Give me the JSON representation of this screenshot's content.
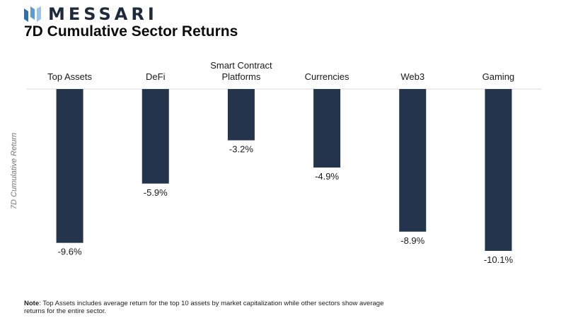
{
  "brand": {
    "name": "MESSARI",
    "color": "#1f2a3c"
  },
  "title": "7D Cumulative Sector Returns",
  "note": {
    "prefix": "Note",
    "text": ": Top Assets includes average return for the top 10 assets by market capitalization while other sectors show average returns for the entire sector."
  },
  "chart_data": {
    "type": "bar",
    "title": "7D Cumulative Sector Returns",
    "ylabel": "7D Cumulative Return",
    "xlabel": "",
    "categories": [
      "Top Assets",
      "DeFi",
      "Smart Contract Platforms",
      "Currencies",
      "Web3",
      "Gaming"
    ],
    "category_lines": [
      [
        "Top Assets"
      ],
      [
        "DeFi"
      ],
      [
        "Smart Contract",
        "Platforms"
      ],
      [
        "Currencies"
      ],
      [
        "Web3"
      ],
      [
        "Gaming"
      ]
    ],
    "values": [
      -9.6,
      -5.9,
      -3.2,
      -4.9,
      -8.9,
      -10.1
    ],
    "value_labels": [
      "-9.6%",
      "-5.9%",
      "-3.2%",
      "-4.9%",
      "-8.9%",
      "-10.1%"
    ],
    "bar_color": "#24344d",
    "ylim": [
      -10.1,
      0
    ],
    "grid": false,
    "legend": "none"
  }
}
